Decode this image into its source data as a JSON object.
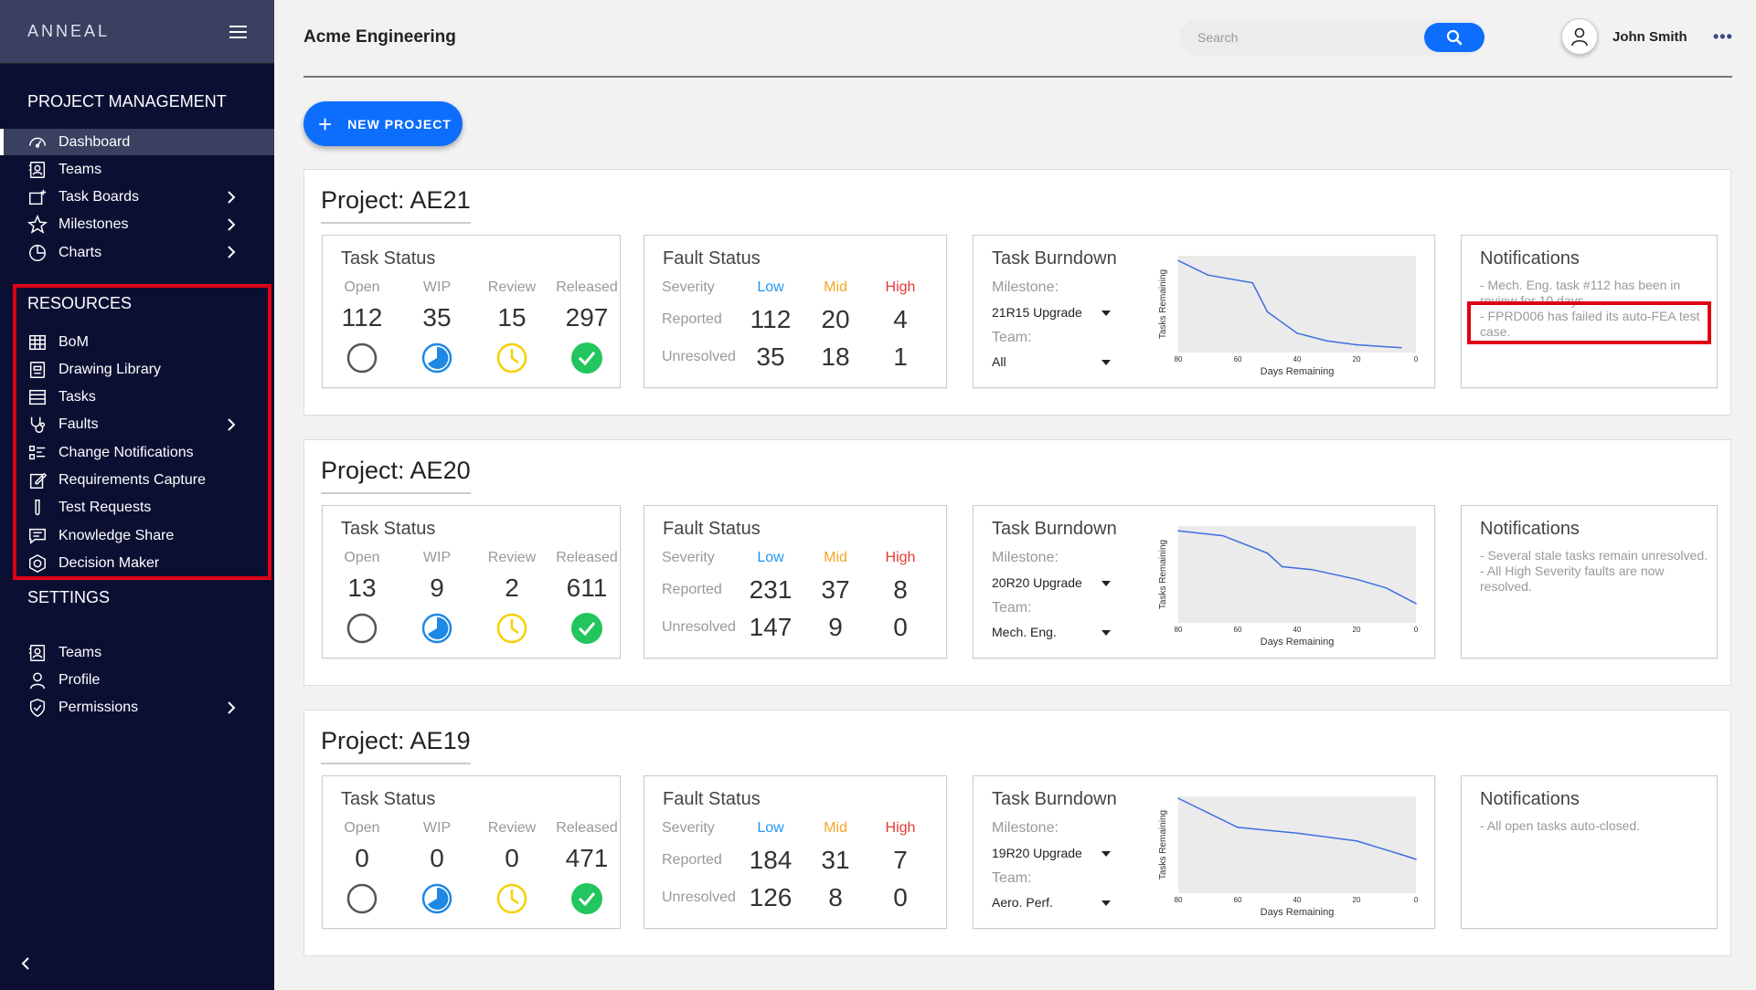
{
  "app": {
    "brand": "ANNEAL",
    "title": "Acme Engineering"
  },
  "sidebar": {
    "sections": [
      {
        "label": "PROJECT MANAGEMENT"
      },
      {
        "label": "RESOURCES"
      },
      {
        "label": "SETTINGS"
      }
    ],
    "pm_items": [
      {
        "label": "Dashboard",
        "icon": "gauge-icon",
        "active": true
      },
      {
        "label": "Teams",
        "icon": "contact-icon"
      },
      {
        "label": "Task Boards",
        "icon": "board-icon",
        "chevron": true
      },
      {
        "label": "Milestones",
        "icon": "star-icon",
        "chevron": true
      },
      {
        "label": "Charts",
        "icon": "pie-chart-icon",
        "chevron": true
      }
    ],
    "res_items": [
      {
        "label": "BoM",
        "icon": "grid-icon"
      },
      {
        "label": "Drawing Library",
        "icon": "library-icon"
      },
      {
        "label": "Tasks",
        "icon": "list-icon"
      },
      {
        "label": "Faults",
        "icon": "stethoscope-icon",
        "chevron": true
      },
      {
        "label": "Change Notifications",
        "icon": "checklist-icon"
      },
      {
        "label": "Requirements Capture",
        "icon": "edit-icon"
      },
      {
        "label": "Test Requests",
        "icon": "test-tube-icon"
      },
      {
        "label": "Knowledge Share",
        "icon": "chat-icon"
      },
      {
        "label": "Decision Maker",
        "icon": "decision-icon"
      }
    ],
    "settings_items": [
      {
        "label": "Teams",
        "icon": "contact-icon"
      },
      {
        "label": "Profile",
        "icon": "user-icon"
      },
      {
        "label": "Permissions",
        "icon": "shield-icon",
        "chevron": true
      }
    ]
  },
  "header": {
    "search_placeholder": "Search",
    "username": "John Smith",
    "new_project": "NEW PROJECT"
  },
  "labels": {
    "task_status": "Task Status",
    "fault_status": "Fault Status",
    "task_burndown": "Task Burndown",
    "notifications": "Notifications",
    "open": "Open",
    "wip": "WIP",
    "review": "Review",
    "released": "Released",
    "severity": "Severity",
    "low": "Low",
    "mid": "Mid",
    "high": "High",
    "reported": "Reported",
    "unresolved": "Unresolved",
    "milestone": "Milestone:",
    "team": "Team:",
    "y_axis": "Tasks Remaining",
    "x_axis": "Days Remaining",
    "x_ticks": [
      "80",
      "60",
      "40",
      "20",
      "0"
    ]
  },
  "colors": {
    "low": "#2196f3",
    "mid": "#f5a623",
    "high": "#e53935",
    "wip": "#1e88e5",
    "review": "#f5d000",
    "released": "#22c55e",
    "accent": "#0d6efd",
    "sidebar": "#0b1033"
  },
  "projects": [
    {
      "title": "Project: AE21",
      "task": {
        "open": "112",
        "wip": "35",
        "review": "15",
        "released": "297"
      },
      "fault": {
        "reported": [
          "112",
          "20",
          "4"
        ],
        "unresolved": [
          "35",
          "18",
          "1"
        ]
      },
      "milestone": "21R15 Upgrade",
      "team": "All",
      "notifications": [
        "- Mech. Eng. task #112 has been in review for 10 days.",
        "- FPRD006 has failed its auto-FEA test case."
      ],
      "chart_data": {
        "type": "line",
        "x": [
          80,
          70,
          55,
          50,
          40,
          30,
          20,
          5
        ],
        "y": [
          95,
          80,
          72,
          42,
          20,
          12,
          8,
          5
        ],
        "xlim": [
          80,
          0
        ],
        "ylim": [
          0,
          100
        ],
        "xlabel": "Days Remaining",
        "ylabel": "Tasks Remaining"
      }
    },
    {
      "title": "Project: AE20",
      "task": {
        "open": "13",
        "wip": "9",
        "review": "2",
        "released": "611"
      },
      "fault": {
        "reported": [
          "231",
          "37",
          "8"
        ],
        "unresolved": [
          "147",
          "9",
          "0"
        ]
      },
      "milestone": "20R20 Upgrade",
      "team": "Mech. Eng.",
      "notifications": [
        "- Several stale tasks remain unresolved.",
        "- All High Severity faults are now resolved."
      ],
      "chart_data": {
        "type": "line",
        "x": [
          80,
          65,
          50,
          45,
          35,
          20,
          10,
          0
        ],
        "y": [
          95,
          90,
          72,
          58,
          55,
          45,
          36,
          20
        ],
        "xlim": [
          80,
          0
        ],
        "ylim": [
          0,
          100
        ],
        "xlabel": "Days Remaining",
        "ylabel": "Tasks Remaining"
      }
    },
    {
      "title": "Project: AE19",
      "task": {
        "open": "0",
        "wip": "0",
        "review": "0",
        "released": "471"
      },
      "fault": {
        "reported": [
          "184",
          "31",
          "7"
        ],
        "unresolved": [
          "126",
          "8",
          "0"
        ]
      },
      "milestone": "19R20 Upgrade",
      "team": "Aero. Perf.",
      "notifications": [
        "- All open tasks auto-closed."
      ],
      "chart_data": {
        "type": "line",
        "x": [
          80,
          60,
          40,
          20,
          5,
          0
        ],
        "y": [
          98,
          68,
          62,
          54,
          40,
          35
        ],
        "xlim": [
          80,
          0
        ],
        "ylim": [
          0,
          100
        ],
        "xlabel": "Days Remaining",
        "ylabel": "Tasks Remaining"
      }
    }
  ]
}
